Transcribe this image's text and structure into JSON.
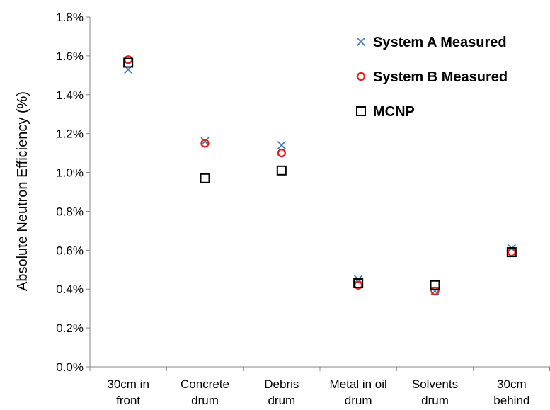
{
  "chart_data": {
    "type": "scatter",
    "title": "",
    "xlabel": "",
    "ylabel": "Absolute Neutron Efficiency (%)",
    "ylim": [
      0,
      1.8
    ],
    "yticks": [
      "0.0%",
      "0.2%",
      "0.4%",
      "0.6%",
      "0.8%",
      "1.0%",
      "1.2%",
      "1.4%",
      "1.6%",
      "1.8%"
    ],
    "categories": [
      [
        "30cm in",
        "front"
      ],
      [
        "Concrete",
        "drum"
      ],
      [
        "Debris",
        "drum"
      ],
      [
        "Metal in oil",
        "drum"
      ],
      [
        "Solvents",
        "drum"
      ],
      [
        "30cm",
        "behind"
      ]
    ],
    "grid": false,
    "legend_position": "top-right",
    "series": [
      {
        "name": "System A Measured",
        "marker": "x",
        "color": "#4a7ebb",
        "values": [
          1.53,
          1.16,
          1.14,
          0.45,
          0.39,
          0.61
        ]
      },
      {
        "name": "System B Measured",
        "marker": "circle",
        "color": "#e8201b",
        "values": [
          1.58,
          1.15,
          1.1,
          0.42,
          0.39,
          0.59
        ]
      },
      {
        "name": "MCNP",
        "marker": "square",
        "color": "#000000",
        "values": [
          1.565,
          0.97,
          1.01,
          0.43,
          0.42,
          0.59
        ]
      }
    ]
  }
}
